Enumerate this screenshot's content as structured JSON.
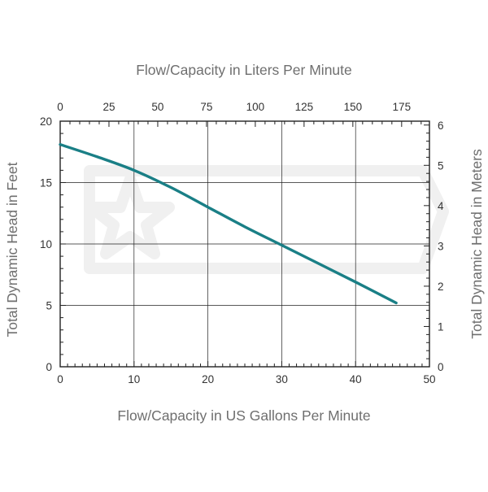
{
  "chart_data": {
    "type": "line",
    "x_axis": {
      "label": "Flow/Capacity in US Gallons Per Minute",
      "range": [
        0,
        50
      ],
      "ticks": [
        0,
        10,
        20,
        30,
        40,
        50
      ],
      "minor_step": 1
    },
    "x2_axis": {
      "label": "Flow/Capacity in Liters Per Minute",
      "ticks": [
        0,
        25,
        50,
        75,
        100,
        125,
        150,
        175
      ],
      "minor_step": 5,
      "conversion_per_gpm": 3.785
    },
    "y_axis": {
      "label": "Total Dynamic Head in Feet",
      "range": [
        0,
        20
      ],
      "ticks": [
        0,
        5,
        10,
        15,
        20
      ],
      "minor_step": 1
    },
    "y2_axis": {
      "label": "Total Dynamic Head in Meters",
      "ticks": [
        0,
        1,
        2,
        3,
        4,
        5,
        6
      ],
      "minor_step": 0.2,
      "conversion_per_ft": 0.3048
    },
    "grid": true,
    "series": [
      {
        "color": "#1a7f86",
        "x": [
          0,
          5,
          10,
          15,
          20,
          25,
          30,
          35,
          40,
          45.5
        ],
        "y": [
          18.1,
          17.1,
          16.0,
          14.6,
          13.0,
          11.4,
          9.9,
          8.4,
          6.9,
          5.2
        ]
      }
    ]
  }
}
